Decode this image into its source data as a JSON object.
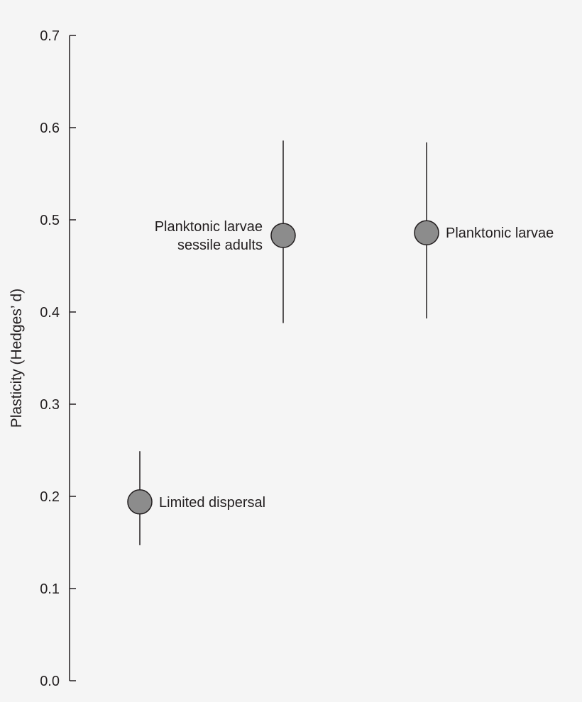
{
  "chart_data": {
    "type": "scatter",
    "title": "",
    "xlabel": "",
    "ylabel": "Plasticity (Hedges’ d)",
    "ylim": [
      0.0,
      0.7
    ],
    "yticks": [
      "0.0",
      "0.1",
      "0.2",
      "0.3",
      "0.4",
      "0.5",
      "0.6",
      "0.7"
    ],
    "grid": false,
    "marker_color": "#8c8c8c",
    "points": [
      {
        "label_lines": [
          "Limited dispersal"
        ],
        "y": 0.194,
        "lower": 0.147,
        "upper": 0.249,
        "label_side": "right"
      },
      {
        "label_lines": [
          "Planktonic larvae",
          "sessile adults"
        ],
        "y": 0.483,
        "lower": 0.388,
        "upper": 0.586,
        "label_side": "left"
      },
      {
        "label_lines": [
          "Planktonic larvae"
        ],
        "y": 0.486,
        "lower": 0.393,
        "upper": 0.584,
        "label_side": "right"
      }
    ]
  }
}
